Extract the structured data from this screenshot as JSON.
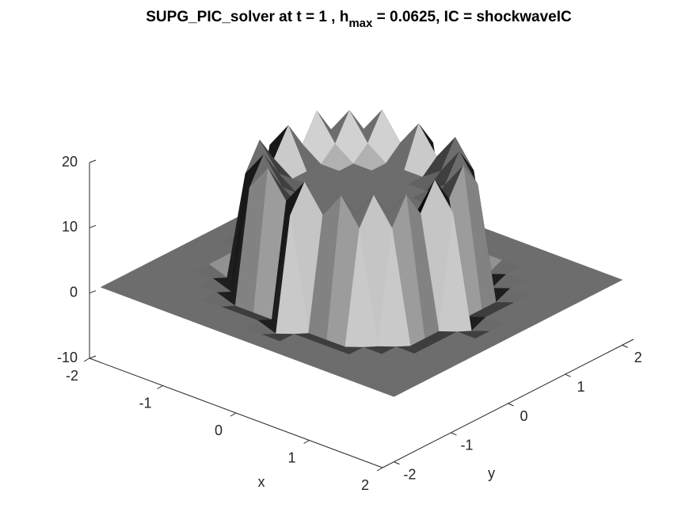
{
  "chart_data": {
    "type": "surface",
    "title": [
      "SUPG_PIC_solver at t = 1 , h",
      "max",
      " = 0.0625, IC = shockwaveIC"
    ],
    "xlabel": "x",
    "ylabel": "y",
    "xlim": [
      -2,
      2
    ],
    "ylim": [
      -2.2,
      2.2
    ],
    "zlim": [
      -10,
      20
    ],
    "xticks": [
      -2,
      -1,
      0,
      1,
      2
    ],
    "yticks": [
      -2,
      -1,
      0,
      1,
      2
    ],
    "zticks": [
      -10,
      0,
      10,
      20
    ],
    "x": [
      -2,
      -1.75,
      -1.5,
      -1.25,
      -1,
      -0.75,
      -0.5,
      -0.25,
      0,
      0.25,
      0.5,
      0.75,
      1,
      1.25,
      1.5,
      1.75,
      2
    ],
    "y": [
      -2,
      -1.75,
      -1.5,
      -1.25,
      -1,
      -0.75,
      -0.5,
      -0.25,
      0,
      0.25,
      0.5,
      0.75,
      1,
      1.25,
      1.5,
      1.75,
      2
    ],
    "z": [
      [
        0,
        0,
        0,
        0,
        0,
        0,
        0,
        0,
        0,
        0,
        0,
        0,
        0,
        0,
        0,
        0,
        0
      ],
      [
        0,
        0,
        0,
        0,
        0,
        0,
        0,
        0,
        0,
        0,
        0,
        0,
        0,
        0,
        0,
        0,
        0
      ],
      [
        0,
        0,
        0,
        0,
        0,
        0,
        0,
        0,
        -1,
        0,
        0,
        0,
        0,
        0,
        0,
        0,
        0
      ],
      [
        0,
        0,
        0,
        0,
        0,
        -1,
        -1,
        -1,
        16,
        -1,
        -1,
        -1,
        0,
        0,
        0,
        0,
        0
      ],
      [
        0,
        0,
        0,
        0,
        -1,
        16,
        20,
        16,
        20,
        16,
        20,
        16,
        -1,
        0,
        0,
        0,
        0
      ],
      [
        0,
        0,
        0,
        -1,
        16,
        20,
        16,
        14,
        14,
        14,
        16,
        20,
        16,
        -1,
        0,
        0,
        0
      ],
      [
        0,
        0,
        0,
        -1,
        20,
        16,
        14,
        14,
        14,
        14,
        14,
        16,
        20,
        -1,
        0,
        0,
        0
      ],
      [
        0,
        0,
        0,
        -1,
        16,
        14,
        14,
        14,
        14,
        14,
        14,
        14,
        16,
        -1,
        0,
        0,
        0
      ],
      [
        0,
        0,
        -1,
        16,
        20,
        14,
        14,
        14,
        14,
        14,
        14,
        14,
        20,
        16,
        -1,
        0,
        0
      ],
      [
        0,
        0,
        0,
        -1,
        16,
        14,
        14,
        14,
        14,
        14,
        14,
        14,
        16,
        -1,
        0,
        0,
        0
      ],
      [
        0,
        0,
        0,
        -1,
        20,
        16,
        14,
        14,
        14,
        14,
        14,
        16,
        20,
        -1,
        0,
        0,
        0
      ],
      [
        0,
        0,
        0,
        -1,
        16,
        20,
        16,
        14,
        14,
        14,
        16,
        20,
        16,
        -1,
        0,
        0,
        0
      ],
      [
        0,
        0,
        0,
        0,
        -1,
        16,
        20,
        16,
        20,
        16,
        20,
        16,
        -1,
        0,
        0,
        0,
        0
      ],
      [
        0,
        0,
        0,
        0,
        0,
        -1,
        -1,
        -1,
        16,
        -1,
        -1,
        -1,
        0,
        0,
        0,
        0,
        0
      ],
      [
        0,
        0,
        0,
        0,
        0,
        0,
        0,
        0,
        -1,
        0,
        0,
        0,
        0,
        0,
        0,
        0,
        0
      ],
      [
        0,
        0,
        0,
        0,
        0,
        0,
        0,
        0,
        0,
        0,
        0,
        0,
        0,
        0,
        0,
        0,
        0
      ],
      [
        0,
        0,
        0,
        0,
        0,
        0,
        0,
        0,
        0,
        0,
        0,
        0,
        0,
        0,
        0,
        0,
        0
      ]
    ],
    "color": "#808080"
  }
}
